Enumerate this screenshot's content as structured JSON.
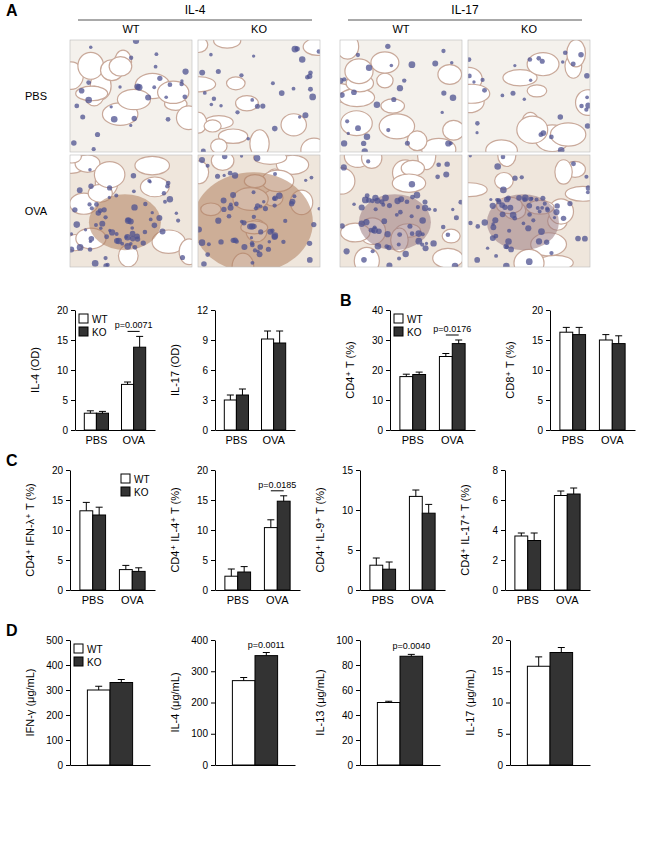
{
  "figure": {
    "panel_labels": [
      "A",
      "B",
      "C",
      "D"
    ],
    "micrographs": {
      "groups": [
        {
          "title": "IL-4",
          "columns": [
            "WT",
            "KO"
          ]
        },
        {
          "title": "IL-17",
          "columns": [
            "WT",
            "KO"
          ]
        }
      ],
      "rows": [
        "PBS",
        "OVA"
      ]
    }
  },
  "chart_data": [
    {
      "type": "bar",
      "y_label": "IL-4 (OD)",
      "categories": [
        "PBS",
        "OVA"
      ],
      "series": [
        {
          "name": "WT",
          "color": "#ffffff",
          "values": [
            2.8,
            7.6
          ],
          "errors": [
            0.4,
            0.4
          ]
        },
        {
          "name": "KO",
          "color": "#333333",
          "values": [
            2.8,
            13.8
          ],
          "errors": [
            0.3,
            1.8
          ]
        }
      ],
      "ylim": [
        0,
        20
      ],
      "yticks": [
        0,
        5,
        10,
        15,
        20
      ],
      "legend": "upper left",
      "annotations": [
        {
          "text": "p=0.0071",
          "x": "OVA"
        }
      ]
    },
    {
      "type": "bar",
      "y_label": "IL-17 (OD)",
      "categories": [
        "PBS",
        "OVA"
      ],
      "series": [
        {
          "color": "#ffffff",
          "values": [
            3.0,
            9.1
          ],
          "errors": [
            0.5,
            0.8
          ]
        },
        {
          "color": "#333333",
          "values": [
            3.5,
            8.7
          ],
          "errors": [
            0.6,
            1.2
          ]
        }
      ],
      "ylim": [
        0,
        12
      ],
      "yticks": [
        0,
        3,
        6,
        9,
        12
      ]
    },
    {
      "type": "bar",
      "y_label": "CD4⁺ T (%)",
      "categories": [
        "PBS",
        "OVA"
      ],
      "series": [
        {
          "name": "WT",
          "color": "#ffffff",
          "values": [
            17.8,
            24.5
          ],
          "errors": [
            0.8,
            1.0
          ]
        },
        {
          "name": "KO",
          "color": "#333333",
          "values": [
            18.5,
            28.8
          ],
          "errors": [
            0.8,
            1.2
          ]
        }
      ],
      "ylim": [
        0,
        40
      ],
      "yticks": [
        0,
        10,
        20,
        30,
        40
      ],
      "legend": "upper left",
      "annotations": [
        {
          "text": "p=0.0176",
          "x": "OVA"
        }
      ]
    },
    {
      "type": "bar",
      "y_label": "CD8⁺ T (%)",
      "categories": [
        "PBS",
        "OVA"
      ],
      "series": [
        {
          "color": "#ffffff",
          "values": [
            16.3,
            15.0
          ],
          "errors": [
            0.8,
            0.9
          ]
        },
        {
          "color": "#333333",
          "values": [
            15.9,
            14.4
          ],
          "errors": [
            1.2,
            1.3
          ]
        }
      ],
      "ylim": [
        0,
        20
      ],
      "yticks": [
        0,
        5,
        10,
        15,
        20
      ]
    },
    {
      "type": "bar",
      "y_label": "CD4⁺ IFN-λ⁺ T (%)",
      "categories": [
        "PBS",
        "OVA"
      ],
      "series": [
        {
          "name": "WT",
          "color": "#ffffff",
          "values": [
            13.2,
            3.4
          ],
          "errors": [
            1.4,
            0.7
          ]
        },
        {
          "name": "KO",
          "color": "#333333",
          "values": [
            12.5,
            3.1
          ],
          "errors": [
            1.3,
            0.6
          ]
        }
      ],
      "ylim": [
        0,
        20
      ],
      "yticks": [
        0,
        5,
        10,
        15,
        20
      ],
      "legend": "upper right"
    },
    {
      "type": "bar",
      "y_label": "CD4⁺ IL-4⁺ T (%)",
      "categories": [
        "PBS",
        "OVA"
      ],
      "series": [
        {
          "color": "#ffffff",
          "values": [
            2.3,
            10.4
          ],
          "errors": [
            1.2,
            1.3
          ]
        },
        {
          "color": "#333333",
          "values": [
            3.0,
            14.8
          ],
          "errors": [
            0.9,
            0.9
          ]
        }
      ],
      "ylim": [
        0,
        20
      ],
      "yticks": [
        0,
        5,
        10,
        15,
        20
      ],
      "annotations": [
        {
          "text": "p=0.0185",
          "x": "OVA"
        }
      ]
    },
    {
      "type": "bar",
      "y_label": "CD4⁺ IL-9⁺ T (%)",
      "categories": [
        "PBS",
        "OVA"
      ],
      "series": [
        {
          "color": "#ffffff",
          "values": [
            3.1,
            11.7
          ],
          "errors": [
            0.9,
            0.8
          ]
        },
        {
          "color": "#333333",
          "values": [
            2.6,
            9.6
          ],
          "errors": [
            0.9,
            1.1
          ]
        }
      ],
      "ylim": [
        0,
        15
      ],
      "yticks": [
        0,
        5,
        10,
        15
      ]
    },
    {
      "type": "bar",
      "y_label": "CD4⁺ IL-17⁺ T (%)",
      "categories": [
        "PBS",
        "OVA"
      ],
      "series": [
        {
          "color": "#ffffff",
          "values": [
            3.6,
            6.3
          ],
          "errors": [
            0.2,
            0.3
          ]
        },
        {
          "color": "#333333",
          "values": [
            3.3,
            6.4
          ],
          "errors": [
            0.5,
            0.4
          ]
        }
      ],
      "ylim": [
        0,
        8
      ],
      "yticks": [
        0,
        2,
        4,
        6,
        8
      ]
    },
    {
      "type": "bar",
      "y_label": "IFN-γ (μg/mL)",
      "categories": [
        null
      ],
      "series": [
        {
          "name": "WT",
          "color": "#ffffff",
          "values": [
            300
          ],
          "errors": [
            15
          ]
        },
        {
          "name": "KO",
          "color": "#333333",
          "values": [
            330
          ],
          "errors": [
            12
          ]
        }
      ],
      "ylim": [
        0,
        500
      ],
      "yticks": [
        0,
        100,
        200,
        300,
        400,
        500
      ],
      "legend": "upper left"
    },
    {
      "type": "bar",
      "y_label": "IL-4 (μg/mL)",
      "categories": [
        null
      ],
      "series": [
        {
          "color": "#ffffff",
          "values": [
            270
          ],
          "errors": [
            10
          ]
        },
        {
          "color": "#333333",
          "values": [
            350
          ],
          "errors": [
            10
          ]
        }
      ],
      "ylim": [
        0,
        400
      ],
      "yticks": [
        0,
        100,
        200,
        300,
        400
      ],
      "annotations": [
        {
          "text": "p=0.0011",
          "series": 1
        }
      ]
    },
    {
      "type": "bar",
      "y_label": "IL-13 (μg/mL)",
      "categories": [
        null
      ],
      "series": [
        {
          "color": "#ffffff",
          "values": [
            50
          ],
          "errors": [
            1
          ]
        },
        {
          "color": "#333333",
          "values": [
            87
          ],
          "errors": [
            1.5
          ]
        }
      ],
      "ylim": [
        0,
        100
      ],
      "yticks": [
        0,
        20,
        40,
        60,
        80,
        100
      ],
      "annotations": [
        {
          "text": "p=0.0040",
          "series": 1
        }
      ]
    },
    {
      "type": "bar",
      "y_label": "IL-17 (μg/mL)",
      "categories": [
        null
      ],
      "series": [
        {
          "color": "#ffffff",
          "values": [
            15.8
          ],
          "errors": [
            1.5
          ]
        },
        {
          "color": "#333333",
          "values": [
            18.0
          ],
          "errors": [
            0.8
          ]
        }
      ],
      "ylim": [
        0,
        20
      ],
      "yticks": [
        0,
        5,
        10,
        15,
        20
      ]
    }
  ]
}
